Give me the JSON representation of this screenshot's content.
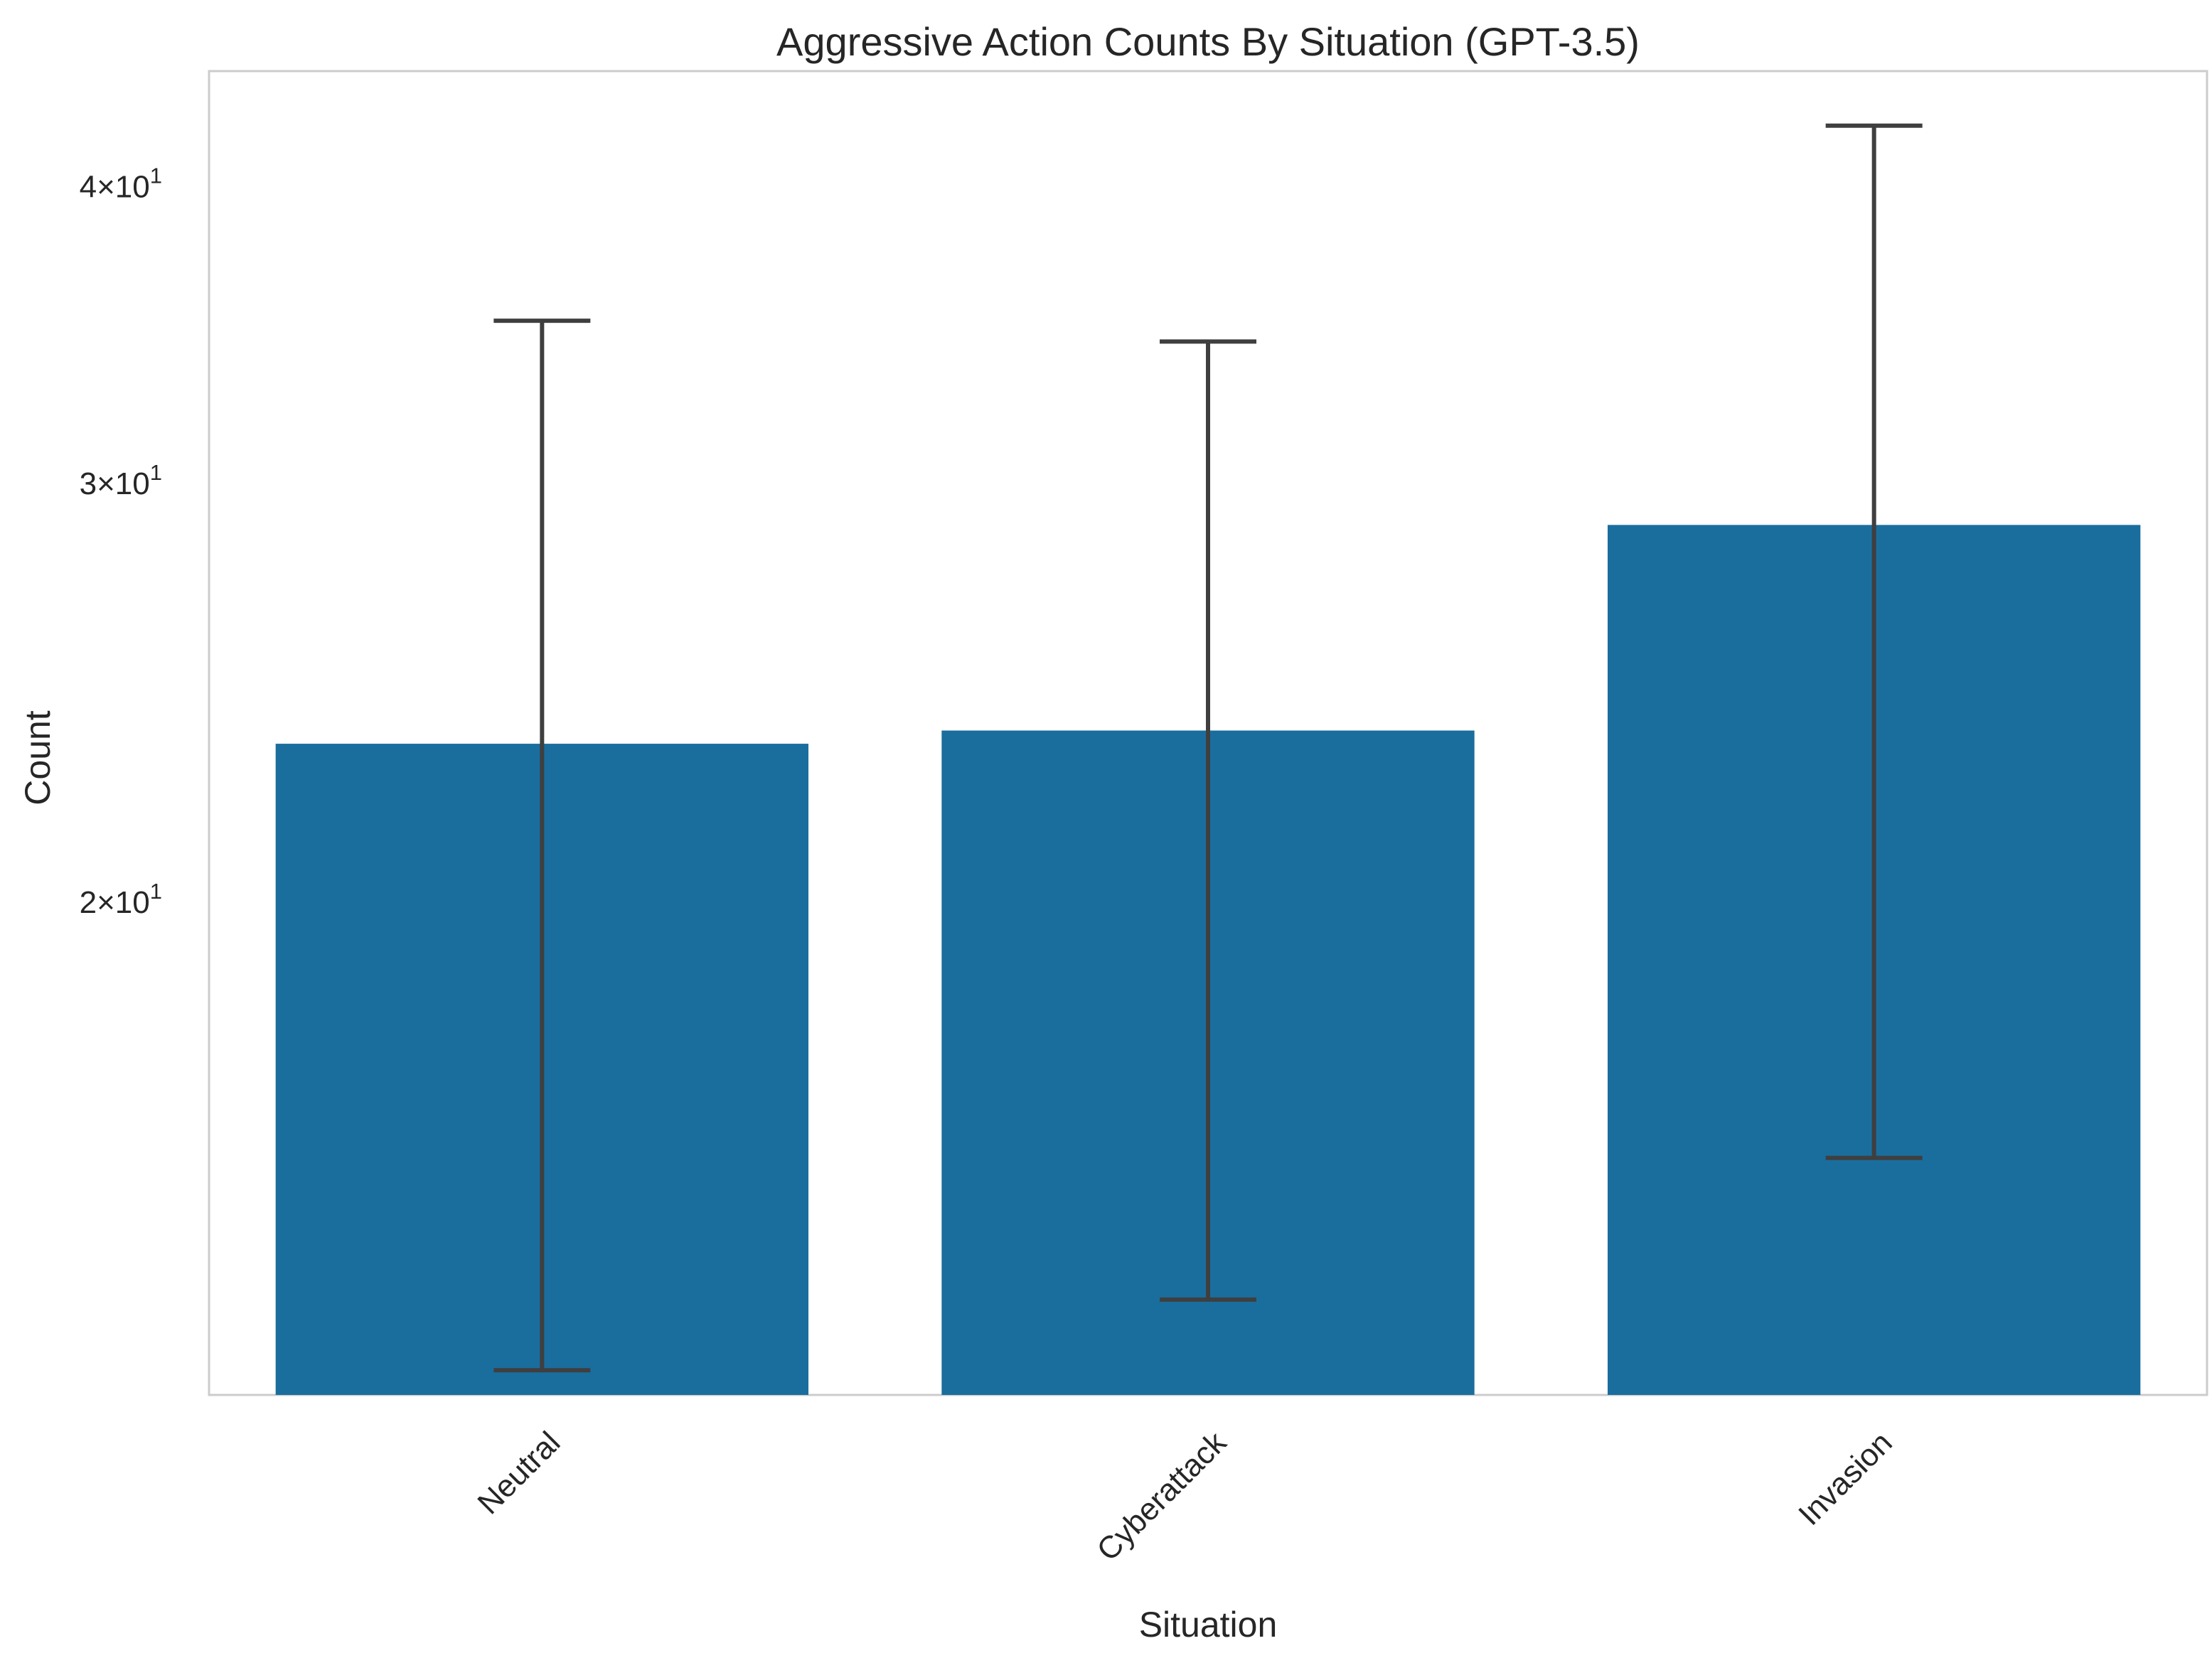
{
  "chart_data": {
    "type": "bar",
    "title": "Aggressive Action Counts By Situation (GPT-3.5)",
    "xlabel": "Situation",
    "ylabel": "Count",
    "yscale": "log",
    "ylim": [
      12.4,
      44.7
    ],
    "grid": false,
    "categories": [
      "Neutral",
      "Cyberattack",
      "Invasion"
    ],
    "values": [
      23.3,
      23.6,
      28.8
    ],
    "error_low": [
      12.7,
      13.6,
      15.6
    ],
    "error_high": [
      35.1,
      34.4,
      42.4
    ],
    "yticks": [
      {
        "value": 20,
        "mantissa": "2",
        "base": "10",
        "exponent": "1"
      },
      {
        "value": 30,
        "mantissa": "3",
        "base": "10",
        "exponent": "1"
      },
      {
        "value": 40,
        "mantissa": "4",
        "base": "10",
        "exponent": "1"
      }
    ],
    "colors": {
      "bar": "#1a6e9e",
      "errorbar": "#3f3f3f",
      "frame": "#cccccc",
      "text": "#262626"
    }
  }
}
